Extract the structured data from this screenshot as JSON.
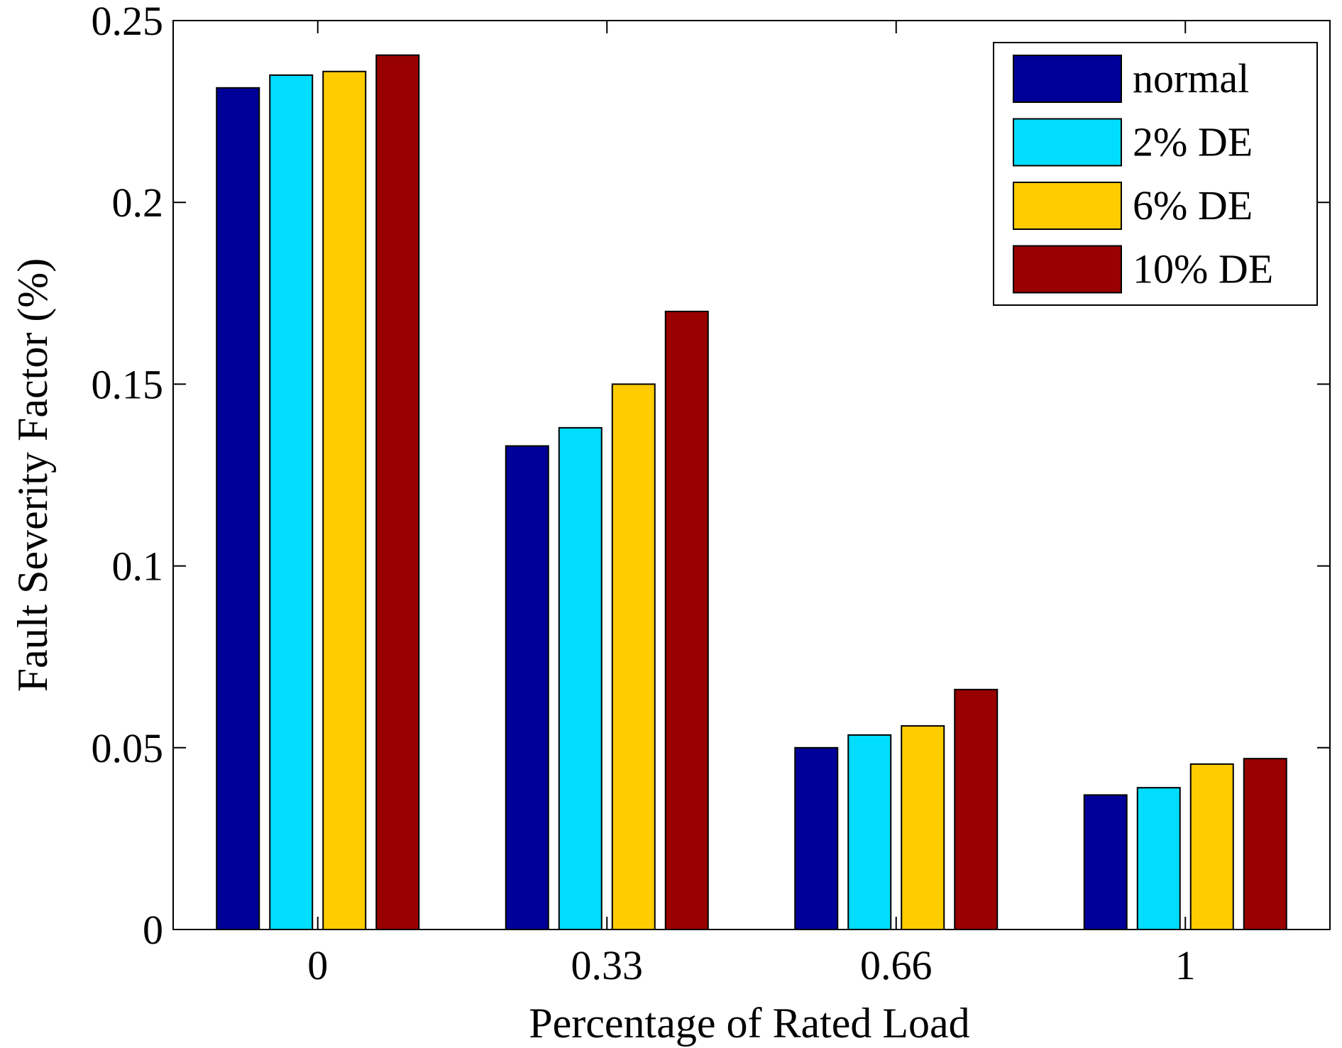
{
  "chart_data": {
    "type": "bar",
    "title": "",
    "xlabel": "Percentage of Rated Load",
    "ylabel": "Fault Severity Factor (%)",
    "categories": [
      "0",
      "0.33",
      "0.66",
      "1"
    ],
    "ylim": [
      0,
      0.25
    ],
    "yticks": [
      0,
      0.05,
      0.1,
      0.15,
      0.2,
      0.25
    ],
    "ytick_labels": [
      "0",
      "0.05",
      "0.1",
      "0.15",
      "0.2",
      "0.25"
    ],
    "grid": false,
    "legend_position": "top-right",
    "series": [
      {
        "name": "normal",
        "color": "#000099",
        "values": [
          0.2315,
          0.133,
          0.05,
          0.037
        ]
      },
      {
        "name": "2% DE",
        "color": "#00DDFF",
        "values": [
          0.235,
          0.138,
          0.0535,
          0.039
        ]
      },
      {
        "name": "6% DE",
        "color": "#FFCC00",
        "values": [
          0.236,
          0.15,
          0.056,
          0.0455
        ]
      },
      {
        "name": "10% DE",
        "color": "#990000",
        "values": [
          0.2405,
          0.17,
          0.066,
          0.047
        ]
      }
    ]
  }
}
